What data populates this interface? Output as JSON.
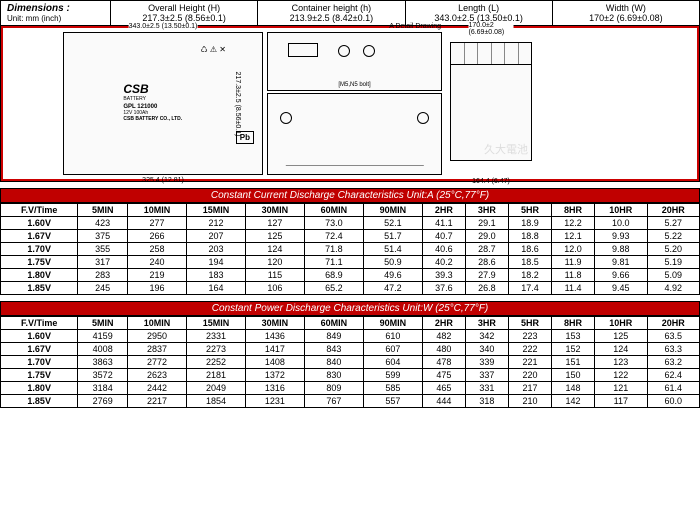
{
  "dimensions": {
    "section_label": "Dimensions :",
    "unit_label": "Unit: mm (inch)",
    "cols": [
      {
        "label": "Overall Height (H)",
        "value": "217.3±2.5 (8.56±0.1)"
      },
      {
        "label": "Container height (h)",
        "value": "213.9±2.5 (8.42±0.1)"
      },
      {
        "label": "Length (L)",
        "value": "343.0±2.5 (13.50±0.1)"
      },
      {
        "label": "Width (W)",
        "value": "170±2 (6.69±0.08)"
      }
    ]
  },
  "diagram": {
    "top_dim": "343.0±2.5 (13.50±0.1)",
    "bot_dim": "325.4 (12.81)",
    "side_dim": "217.3±2.5 (8.56±0.1)",
    "detail": "A Detail Drawing",
    "msnb": "[M5,N5 bolt]",
    "width_dim": "164.4 (6.47)",
    "width_top": "170.0±2 (6.69±0.08)",
    "battery_logo": "CSB",
    "battery_sub": "BATTERY",
    "battery_model": "GPL 121000",
    "battery_spec": "12V 100Ah",
    "battery_co": "CSB BATTERY CO., LTD.",
    "pb": "Pb",
    "watermark": "久大電池"
  },
  "colors": {
    "header_bg": "#c00000",
    "border_red": "#c00",
    "text": "#000000",
    "bg": "#ffffff"
  },
  "table1": {
    "title": "Constant Current Discharge Characteristics   Unit:A (25°C,77°F)",
    "headers": [
      "F.V/Time",
      "5MIN",
      "10MIN",
      "15MIN",
      "30MIN",
      "60MIN",
      "90MIN",
      "2HR",
      "3HR",
      "5HR",
      "8HR",
      "10HR",
      "20HR"
    ],
    "rows": [
      [
        "1.60V",
        "423",
        "277",
        "212",
        "127",
        "73.0",
        "52.1",
        "41.1",
        "29.1",
        "18.9",
        "12.2",
        "10.0",
        "5.27"
      ],
      [
        "1.67V",
        "375",
        "266",
        "207",
        "125",
        "72.4",
        "51.7",
        "40.7",
        "29.0",
        "18.8",
        "12.1",
        "9.93",
        "5.22"
      ],
      [
        "1.70V",
        "355",
        "258",
        "203",
        "124",
        "71.8",
        "51.4",
        "40.6",
        "28.7",
        "18.6",
        "12.0",
        "9.88",
        "5.20"
      ],
      [
        "1.75V",
        "317",
        "240",
        "194",
        "120",
        "71.1",
        "50.9",
        "40.2",
        "28.6",
        "18.5",
        "11.9",
        "9.81",
        "5.19"
      ],
      [
        "1.80V",
        "283",
        "219",
        "183",
        "115",
        "68.9",
        "49.6",
        "39.3",
        "27.9",
        "18.2",
        "11.8",
        "9.66",
        "5.09"
      ],
      [
        "1.85V",
        "245",
        "196",
        "164",
        "106",
        "65.2",
        "47.2",
        "37.6",
        "26.8",
        "17.4",
        "11.4",
        "9.45",
        "4.92"
      ]
    ]
  },
  "table2": {
    "title": "Constant Power Discharge Characteristics   Unit:W (25°C,77°F)",
    "headers": [
      "F.V/Time",
      "5MIN",
      "10MIN",
      "15MIN",
      "30MIN",
      "60MIN",
      "90MIN",
      "2HR",
      "3HR",
      "5HR",
      "8HR",
      "10HR",
      "20HR"
    ],
    "rows": [
      [
        "1.60V",
        "4159",
        "2950",
        "2331",
        "1436",
        "849",
        "610",
        "482",
        "342",
        "223",
        "153",
        "125",
        "63.5"
      ],
      [
        "1.67V",
        "4008",
        "2837",
        "2273",
        "1417",
        "843",
        "607",
        "480",
        "340",
        "222",
        "152",
        "124",
        "63.3"
      ],
      [
        "1.70V",
        "3863",
        "2772",
        "2252",
        "1408",
        "840",
        "604",
        "478",
        "339",
        "221",
        "151",
        "123",
        "63.2"
      ],
      [
        "1.75V",
        "3572",
        "2623",
        "2181",
        "1372",
        "830",
        "599",
        "475",
        "337",
        "220",
        "150",
        "122",
        "62.4"
      ],
      [
        "1.80V",
        "3184",
        "2442",
        "2049",
        "1316",
        "809",
        "585",
        "465",
        "331",
        "217",
        "148",
        "121",
        "61.4"
      ],
      [
        "1.85V",
        "2769",
        "2217",
        "1854",
        "1231",
        "767",
        "557",
        "444",
        "318",
        "210",
        "142",
        "117",
        "60.0"
      ]
    ]
  }
}
